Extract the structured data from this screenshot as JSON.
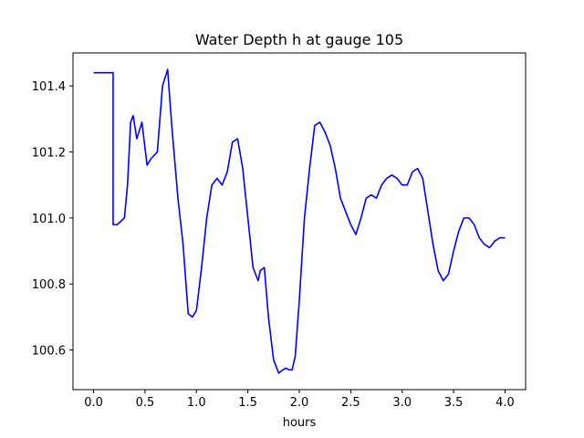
{
  "chart_data": {
    "type": "line",
    "title": "Water Depth h at gauge 105",
    "xlabel": "hours",
    "ylabel": "",
    "xlim": [
      -0.2,
      4.2
    ],
    "ylim": [
      100.48,
      101.5
    ],
    "xticks": [
      0.0,
      0.5,
      1.0,
      1.5,
      2.0,
      2.5,
      3.0,
      3.5,
      4.0
    ],
    "xtick_labels": [
      "0.0",
      "0.5",
      "1.0",
      "1.5",
      "2.0",
      "2.5",
      "3.0",
      "3.5",
      "4.0"
    ],
    "yticks": [
      100.6,
      100.8,
      101.0,
      101.2,
      101.4
    ],
    "ytick_labels": [
      "100.6",
      "100.8",
      "101.0",
      "101.2",
      "101.4"
    ],
    "grid": false,
    "color": "#0000ff",
    "series": [
      {
        "x": [
          0.0,
          0.19,
          0.19,
          0.23,
          0.3,
          0.33,
          0.36,
          0.385,
          0.42,
          0.47,
          0.52,
          0.56,
          0.62,
          0.67,
          0.72,
          0.76,
          0.82,
          0.87,
          0.92,
          0.96,
          1.0,
          1.05,
          1.1,
          1.15,
          1.2,
          1.25,
          1.3,
          1.35,
          1.4,
          1.45,
          1.5,
          1.55,
          1.6,
          1.62,
          1.66,
          1.7,
          1.75,
          1.8,
          1.84,
          1.87,
          1.9,
          1.93,
          1.96,
          2.0,
          2.05,
          2.1,
          2.15,
          2.2,
          2.25,
          2.3,
          2.35,
          2.4,
          2.45,
          2.5,
          2.55,
          2.6,
          2.65,
          2.7,
          2.75,
          2.8,
          2.85,
          2.9,
          2.95,
          3.0,
          3.05,
          3.1,
          3.15,
          3.2,
          3.25,
          3.3,
          3.35,
          3.4,
          3.45,
          3.5,
          3.55,
          3.6,
          3.65,
          3.7,
          3.75,
          3.8,
          3.85,
          3.9,
          3.95,
          4.0
        ],
        "y": [
          101.44,
          101.44,
          100.98,
          100.98,
          101.0,
          101.1,
          101.29,
          101.31,
          101.24,
          101.29,
          101.16,
          101.18,
          101.2,
          101.4,
          101.45,
          101.28,
          101.06,
          100.92,
          100.71,
          100.7,
          100.72,
          100.85,
          101.0,
          101.1,
          101.12,
          101.1,
          101.14,
          101.23,
          101.24,
          101.15,
          101.0,
          100.85,
          100.81,
          100.84,
          100.85,
          100.7,
          100.57,
          100.53,
          100.54,
          100.545,
          100.54,
          100.54,
          100.58,
          100.75,
          101.0,
          101.15,
          101.28,
          101.29,
          101.26,
          101.22,
          101.15,
          101.06,
          101.02,
          100.98,
          100.95,
          101.0,
          101.06,
          101.07,
          101.06,
          101.1,
          101.12,
          101.13,
          101.12,
          101.1,
          101.1,
          101.14,
          101.15,
          101.12,
          101.02,
          100.92,
          100.84,
          100.81,
          100.83,
          100.9,
          100.96,
          101.0,
          101.0,
          100.98,
          100.94,
          100.92,
          100.91,
          100.93,
          100.94,
          100.94
        ]
      }
    ]
  }
}
